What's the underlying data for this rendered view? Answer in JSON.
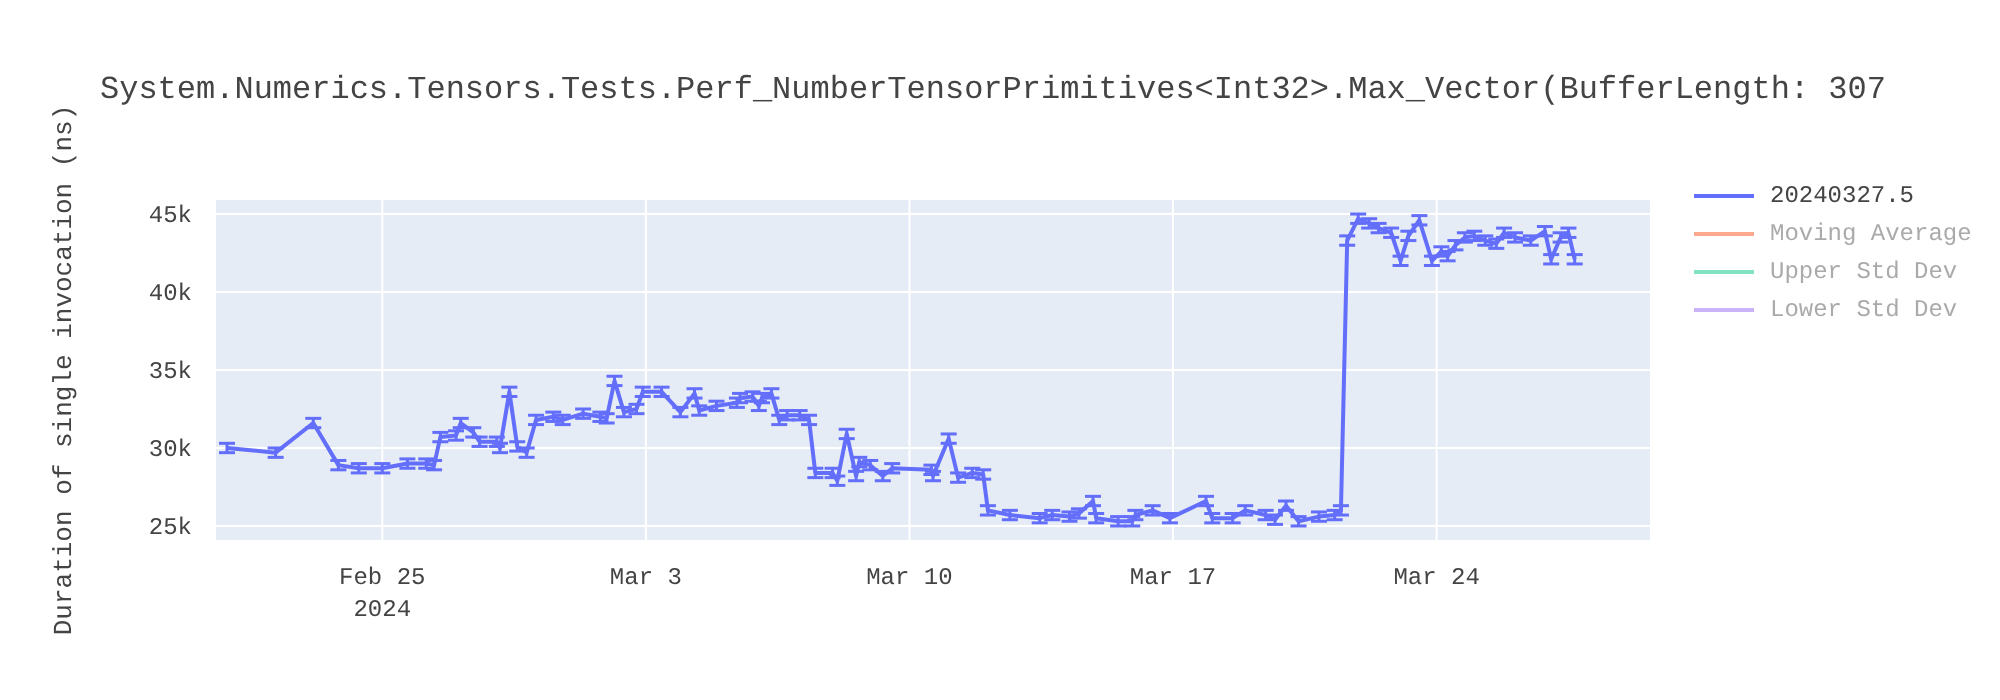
{
  "chart_data": {
    "type": "line",
    "title": "System.Numerics.Tensors.Tests.Perf_NumberTensorPrimitives<Int32>.Max_Vector(BufferLength: 307",
    "ylabel": "Duration of single invocation (ns)",
    "x": [
      "2024-02-20T21:00",
      "2024-02-22T04:00",
      "2024-02-23T04:00",
      "2024-02-23T20:00",
      "2024-02-24T09:00",
      "2024-02-25T00:00",
      "2024-02-25T16:00",
      "2024-02-26T04:00",
      "2024-02-26T09:00",
      "2024-02-26T13:00",
      "2024-02-26T23:00",
      "2024-02-27T02:00",
      "2024-02-27T10:00",
      "2024-02-27T14:00",
      "2024-02-28T01:00",
      "2024-02-28T03:00",
      "2024-02-28T09:00",
      "2024-02-28T14:00",
      "2024-02-28T20:00",
      "2024-02-29T02:00",
      "2024-02-29T13:00",
      "2024-02-29T19:00",
      "2024-03-01T08:00",
      "2024-03-01T19:00",
      "2024-03-01T23:00",
      "2024-03-02T04:00",
      "2024-03-02T10:00",
      "2024-03-02T18:00",
      "2024-03-02T22:00",
      "2024-03-03T10:00",
      "2024-03-03T22:00",
      "2024-03-04T07:00",
      "2024-03-04T10:00",
      "2024-03-04T21:00",
      "2024-03-05T10:00",
      "2024-03-05T12:00",
      "2024-03-05T20:00",
      "2024-03-06T00:00",
      "2024-03-06T02:00",
      "2024-03-06T08:00",
      "2024-03-06T13:00",
      "2024-03-06T18:00",
      "2024-03-07T02:00",
      "2024-03-07T08:00",
      "2024-03-07T12:00",
      "2024-03-07T23:00",
      "2024-03-08T02:00",
      "2024-03-08T08:00",
      "2024-03-08T14:00",
      "2024-03-08T16:00",
      "2024-03-08T23:00",
      "2024-03-09T07:00",
      "2024-03-09T13:00",
      "2024-03-10T14:00",
      "2024-03-10T15:00",
      "2024-03-11T01:00",
      "2024-03-11T07:00",
      "2024-03-11T16:00",
      "2024-03-11T23:00",
      "2024-03-12T02:00",
      "2024-03-12T16:00",
      "2024-03-13T11:00",
      "2024-03-13T19:00",
      "2024-03-14T06:00",
      "2024-03-14T12:00",
      "2024-03-14T21:00",
      "2024-03-14T23:00",
      "2024-03-15T13:00",
      "2024-03-15T22:00",
      "2024-03-16T00:00",
      "2024-03-16T11:00",
      "2024-03-16T22:00",
      "2024-03-17T21:00",
      "2024-03-18T01:00",
      "2024-03-18T14:00",
      "2024-03-18T22:00",
      "2024-03-19T11:00",
      "2024-03-19T17:00",
      "2024-03-20T00:00",
      "2024-03-20T08:00",
      "2024-03-20T21:00",
      "2024-03-21T07:00",
      "2024-03-21T11:00",
      "2024-03-21T15:00",
      "2024-03-21T22:00",
      "2024-03-22T05:00",
      "2024-03-22T11:00",
      "2024-03-22T19:00",
      "2024-03-23T01:00",
      "2024-03-23T06:00",
      "2024-03-23T13:00",
      "2024-03-23T21:00",
      "2024-03-24T03:00",
      "2024-03-24T07:00",
      "2024-03-24T12:00",
      "2024-03-24T18:00",
      "2024-03-25T00:00",
      "2024-03-25T07:00",
      "2024-03-25T14:00",
      "2024-03-25T19:00",
      "2024-03-26T02:00",
      "2024-03-26T12:00",
      "2024-03-26T21:00",
      "2024-03-27T01:00",
      "2024-03-27T07:00",
      "2024-03-27T12:00",
      "2024-03-27T16:00"
    ],
    "series": [
      {
        "name": "20240327.5",
        "color": "#636efa",
        "values": [
          30000,
          29700,
          31600,
          28900,
          28700,
          28700,
          29000,
          29000,
          28900,
          30700,
          30800,
          31600,
          31000,
          30400,
          30400,
          30000,
          33600,
          30100,
          29700,
          31800,
          32000,
          31800,
          32200,
          32000,
          31900,
          34300,
          32300,
          32500,
          33600,
          33600,
          32300,
          33500,
          32400,
          32700,
          32900,
          33200,
          33300,
          32700,
          33200,
          33500,
          31800,
          32100,
          32100,
          31800,
          28400,
          28400,
          27900,
          30900,
          28200,
          29100,
          28900,
          28200,
          28700,
          28600,
          28200,
          30600,
          28100,
          28400,
          28300,
          26000,
          25700,
          25500,
          25700,
          25600,
          25800,
          26600,
          25500,
          25300,
          25300,
          25700,
          26000,
          25500,
          26600,
          25500,
          25500,
          26000,
          25700,
          25400,
          26300,
          25300,
          25600,
          25700,
          26000,
          43300,
          44700,
          44400,
          44100,
          43800,
          42000,
          43600,
          44600,
          42000,
          42600,
          42300,
          43000,
          43500,
          43600,
          43300,
          43100,
          43800,
          43500,
          43300,
          43900,
          42100,
          43500,
          43800,
          42100
        ],
        "errors": [
          300,
          300,
          300,
          300,
          300,
          300,
          300,
          300,
          300,
          300,
          300,
          300,
          300,
          300,
          300,
          300,
          300,
          300,
          300,
          300,
          300,
          300,
          300,
          300,
          300,
          300,
          300,
          300,
          300,
          300,
          300,
          300,
          300,
          300,
          300,
          300,
          300,
          300,
          300,
          300,
          300,
          300,
          300,
          300,
          300,
          300,
          300,
          300,
          300,
          300,
          300,
          300,
          300,
          300,
          300,
          300,
          300,
          300,
          300,
          300,
          300,
          300,
          300,
          300,
          300,
          300,
          300,
          300,
          300,
          300,
          300,
          300,
          300,
          300,
          300,
          300,
          300,
          300,
          300,
          300,
          300,
          300,
          300,
          300,
          300,
          300,
          300,
          300,
          300,
          300,
          300,
          300,
          300,
          300,
          300,
          300,
          300,
          300,
          300,
          300,
          300,
          300,
          300,
          300,
          300,
          300,
          300
        ]
      },
      {
        "name": "Moving Average",
        "color": "#fca98f",
        "values": [
          null,
          null,
          null,
          null,
          null,
          null,
          null,
          null,
          null,
          null,
          null,
          null,
          null,
          null,
          null,
          null,
          null,
          null,
          null,
          null,
          null,
          null,
          null,
          null,
          null,
          null,
          null,
          null,
          null,
          null,
          null,
          null,
          null,
          null,
          null,
          null,
          null,
          null,
          null,
          null,
          null,
          null,
          null,
          null,
          null,
          null,
          null,
          null,
          null,
          null,
          null,
          null,
          null,
          null,
          null,
          null,
          null,
          null,
          null,
          null,
          null,
          null,
          null,
          null,
          null,
          null,
          null,
          null,
          null,
          null,
          null,
          null,
          null,
          null,
          null,
          null,
          null,
          null,
          null,
          null,
          null,
          null,
          null,
          null,
          null,
          null,
          null,
          null,
          null,
          null,
          null,
          null,
          null,
          null,
          null,
          null,
          null,
          null,
          null,
          null,
          null,
          null,
          null,
          null,
          null,
          null,
          null
        ]
      },
      {
        "name": "Upper Std Dev",
        "color": "#7fe3c4",
        "values": [
          null,
          null,
          null,
          null,
          null,
          null,
          null,
          null,
          null,
          null,
          null,
          null,
          null,
          null,
          null,
          null,
          null,
          null,
          null,
          null,
          null,
          null,
          null,
          null,
          null,
          null,
          null,
          null,
          null,
          null,
          null,
          null,
          null,
          null,
          null,
          null,
          null,
          null,
          null,
          null,
          null,
          null,
          null,
          null,
          null,
          null,
          null,
          null,
          null,
          null,
          null,
          null,
          null,
          null,
          null,
          null,
          null,
          null,
          null,
          null,
          null,
          null,
          null,
          null,
          null,
          null,
          null,
          null,
          null,
          null,
          null,
          null,
          null,
          null,
          null,
          null,
          null,
          null,
          null,
          null,
          null,
          null,
          null,
          null,
          null,
          null,
          null,
          null,
          null,
          null,
          null,
          null,
          null,
          null,
          null,
          null,
          null,
          null,
          null,
          null,
          null,
          null,
          null,
          null,
          null,
          null,
          null
        ]
      },
      {
        "name": "Lower Std Dev",
        "color": "#c9b3f9",
        "values": [
          null,
          null,
          null,
          null,
          null,
          null,
          null,
          null,
          null,
          null,
          null,
          null,
          null,
          null,
          null,
          null,
          null,
          null,
          null,
          null,
          null,
          null,
          null,
          null,
          null,
          null,
          null,
          null,
          null,
          null,
          null,
          null,
          null,
          null,
          null,
          null,
          null,
          null,
          null,
          null,
          null,
          null,
          null,
          null,
          null,
          null,
          null,
          null,
          null,
          null,
          null,
          null,
          null,
          null,
          null,
          null,
          null,
          null,
          null,
          null,
          null,
          null,
          null,
          null,
          null,
          null,
          null,
          null,
          null,
          null,
          null,
          null,
          null,
          null,
          null,
          null,
          null,
          null,
          null,
          null,
          null,
          null,
          null,
          null,
          null,
          null,
          null,
          null,
          null,
          null,
          null,
          null,
          null,
          null,
          null,
          null,
          null,
          null,
          null,
          null,
          null,
          null,
          null,
          null,
          null,
          null,
          null
        ]
      }
    ],
    "xlim": [
      "2024-02-20T14:00",
      "2024-03-29T16:00"
    ],
    "xticks": [
      {
        "value": "2024-02-25",
        "label": "Feb 25\n2024"
      },
      {
        "value": "2024-03-03",
        "label": "Mar 3"
      },
      {
        "value": "2024-03-10",
        "label": "Mar 10"
      },
      {
        "value": "2024-03-17",
        "label": "Mar 17"
      },
      {
        "value": "2024-03-24",
        "label": "Mar 24"
      }
    ],
    "ylim": [
      24100,
      45900
    ],
    "yticks": [
      {
        "value": 25000,
        "label": "25k"
      },
      {
        "value": 30000,
        "label": "30k"
      },
      {
        "value": 35000,
        "label": "35k"
      },
      {
        "value": 40000,
        "label": "40k"
      },
      {
        "value": 45000,
        "label": "45k"
      }
    ],
    "grid": true,
    "legend": "top right"
  }
}
